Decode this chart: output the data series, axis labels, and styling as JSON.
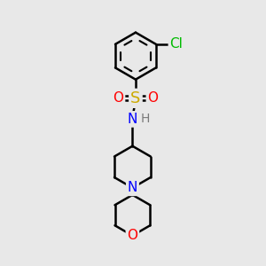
{
  "background_color": "#e8e8e8",
  "bond_color": "#000000",
  "bond_width": 1.8,
  "atom_colors": {
    "C": "#000000",
    "H": "#7a7a7a",
    "N": "#0000ff",
    "O": "#ff0000",
    "S": "#ccaa00",
    "Cl": "#00bb00"
  },
  "font_size": 9,
  "font_size_large": 11
}
